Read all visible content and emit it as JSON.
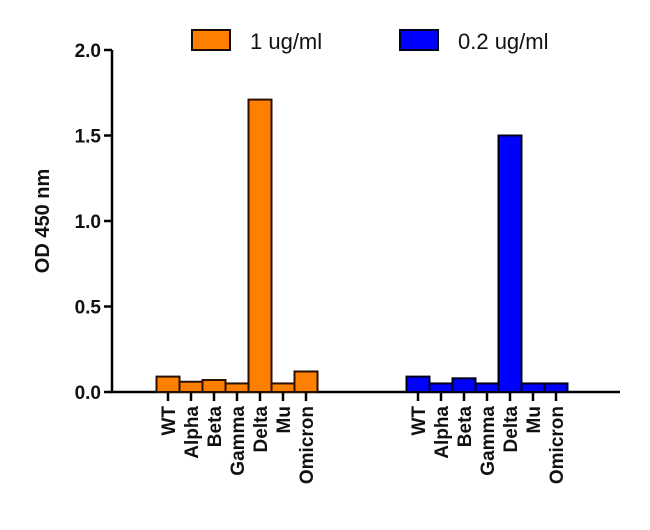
{
  "chart_data": {
    "type": "bar",
    "title": "",
    "xlabel": "",
    "ylabel": "OD 450 nm",
    "ylim": [
      0,
      2.0
    ],
    "yticks": [
      "0.0",
      "0.5",
      "1.0",
      "1.5",
      "2.0"
    ],
    "grid": false,
    "legend_position": "top",
    "categories": [
      "WT",
      "Alpha",
      "Beta",
      "Gamma",
      "Delta",
      "Mu",
      "Omicron"
    ],
    "series": [
      {
        "name": "1 ug/ml",
        "color": "#ff8000",
        "values": [
          0.09,
          0.06,
          0.07,
          0.05,
          1.71,
          0.05,
          0.12
        ]
      },
      {
        "name": "0.2 ug/ml",
        "color": "#0000ff",
        "values": [
          0.09,
          0.05,
          0.08,
          0.05,
          1.5,
          0.05,
          0.05
        ]
      }
    ]
  },
  "legend": {
    "items": [
      {
        "label": "1 ug/ml",
        "color": "#ff8000"
      },
      {
        "label": "0.2 ug/ml",
        "color": "#0000ff"
      }
    ]
  },
  "axis": {
    "ylabel": "OD 450 nm"
  }
}
